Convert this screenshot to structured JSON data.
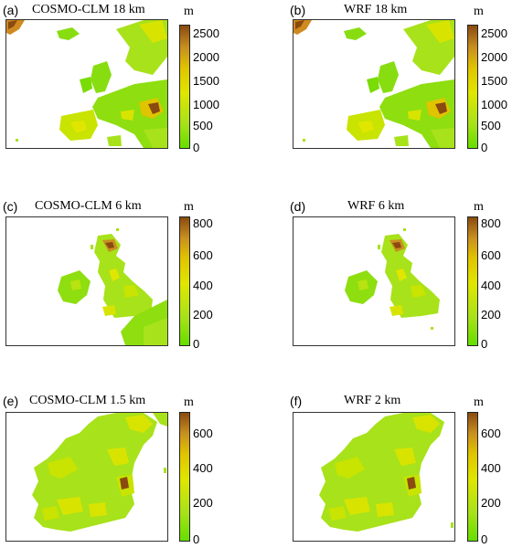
{
  "unit_label": "m",
  "panels": [
    {
      "letter": "(a)",
      "title": "COSMO-CLM 18 km",
      "ticks": [
        "2500",
        "2000",
        "1500",
        "1000",
        "500",
        "0"
      ]
    },
    {
      "letter": "(b)",
      "title": "WRF 18 km",
      "ticks": [
        "2500",
        "2000",
        "1500",
        "1000",
        "500",
        "0"
      ]
    },
    {
      "letter": "(c)",
      "title": "COSMO-CLM 6 km",
      "ticks": [
        "800",
        "600",
        "400",
        "200",
        "0"
      ]
    },
    {
      "letter": "(d)",
      "title": "WRF 6 km",
      "ticks": [
        "800",
        "600",
        "400",
        "200",
        "0"
      ]
    },
    {
      "letter": "(e)",
      "title": "COSMO-CLM 1.5 km",
      "ticks": [
        "600",
        "400",
        "200",
        "0"
      ]
    },
    {
      "letter": "(f)",
      "title": "WRF 2 km",
      "ticks": [
        "600",
        "400",
        "200",
        "0"
      ]
    }
  ],
  "colorbar_colors": [
    "#66dd00",
    "#a8e21a",
    "#e0e600",
    "#e0c400",
    "#c89020",
    "#8a4a10"
  ]
}
